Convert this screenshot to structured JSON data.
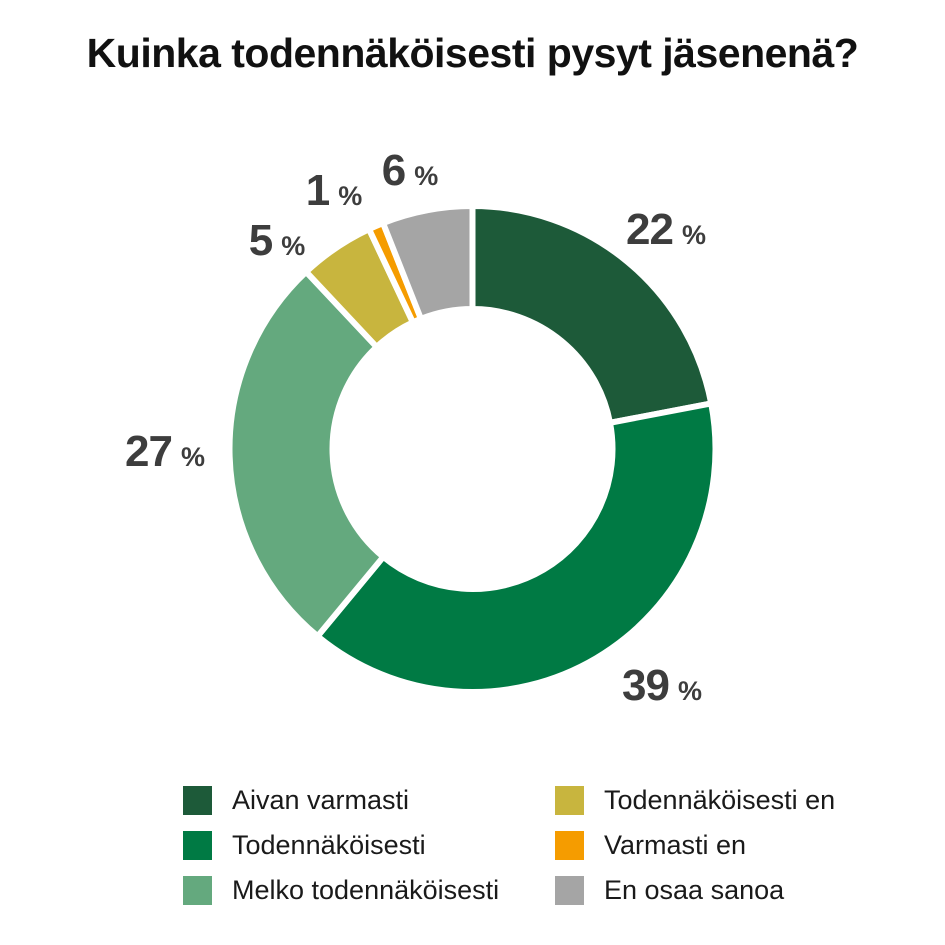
{
  "title": "Kuinka todennäköisesti pysyt jäsenenä?",
  "unit": "%",
  "chart_data": {
    "type": "pie",
    "subtype": "donut",
    "title": "Kuinka todennäköisesti pysyt jäsenenä?",
    "start_angle_deg": 0,
    "direction": "clockwise",
    "donut_hole_ratio": 0.58,
    "legend_position": "bottom",
    "label_color": "#3d3d3d",
    "gap_color": "#ffffff",
    "unit": "%",
    "segments": [
      {
        "label": "Aivan varmasti",
        "value": "22",
        "color": "#1d5a39"
      },
      {
        "label": "Todennäköisesti",
        "value": "39",
        "color": "#007a44"
      },
      {
        "label": "Melko todennäköisesti",
        "value": "27",
        "color": "#64a97e"
      },
      {
        "label": "Todennäköisesti en",
        "value": "5",
        "color": "#c8b53e"
      },
      {
        "label": "Varmasti en",
        "value": "1",
        "color": "#f59c00"
      },
      {
        "label": "En osaa sanoa",
        "value": "6",
        "color": "#a5a5a5"
      }
    ]
  }
}
